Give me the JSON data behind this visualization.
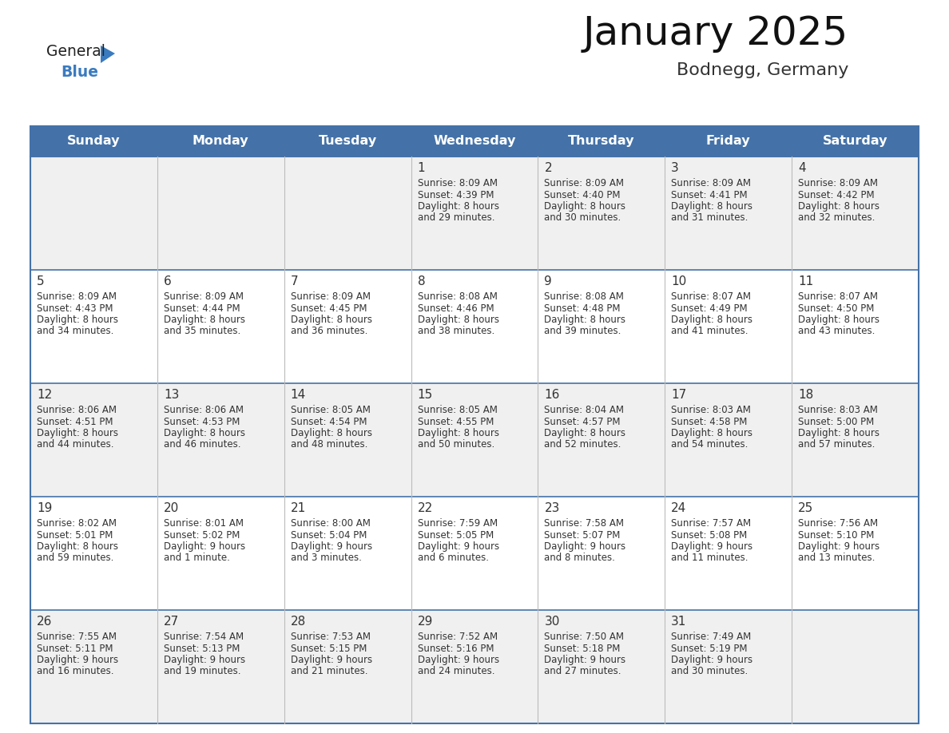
{
  "title": "January 2025",
  "subtitle": "Bodnegg, Germany",
  "days_of_week": [
    "Sunday",
    "Monday",
    "Tuesday",
    "Wednesday",
    "Thursday",
    "Friday",
    "Saturday"
  ],
  "header_bg": "#4472a8",
  "header_text": "#ffffff",
  "cell_bg_odd": "#f0f0f0",
  "cell_bg_even": "#ffffff",
  "cell_text": "#333333",
  "border_color_strong": "#4472a8",
  "border_color_light": "#bbbbbb",
  "title_color": "#111111",
  "subtitle_color": "#333333",
  "logo_general_color": "#222222",
  "logo_blue_color": "#3a7bbf",
  "logo_triangle_color": "#3a7bbf",
  "calendar": [
    [
      null,
      null,
      null,
      {
        "day": 1,
        "sunrise": "8:09 AM",
        "sunset": "4:39 PM",
        "daylight": "8 hours",
        "daylight2": "and 29 minutes."
      },
      {
        "day": 2,
        "sunrise": "8:09 AM",
        "sunset": "4:40 PM",
        "daylight": "8 hours",
        "daylight2": "and 30 minutes."
      },
      {
        "day": 3,
        "sunrise": "8:09 AM",
        "sunset": "4:41 PM",
        "daylight": "8 hours",
        "daylight2": "and 31 minutes."
      },
      {
        "day": 4,
        "sunrise": "8:09 AM",
        "sunset": "4:42 PM",
        "daylight": "8 hours",
        "daylight2": "and 32 minutes."
      }
    ],
    [
      {
        "day": 5,
        "sunrise": "8:09 AM",
        "sunset": "4:43 PM",
        "daylight": "8 hours",
        "daylight2": "and 34 minutes."
      },
      {
        "day": 6,
        "sunrise": "8:09 AM",
        "sunset": "4:44 PM",
        "daylight": "8 hours",
        "daylight2": "and 35 minutes."
      },
      {
        "day": 7,
        "sunrise": "8:09 AM",
        "sunset": "4:45 PM",
        "daylight": "8 hours",
        "daylight2": "and 36 minutes."
      },
      {
        "day": 8,
        "sunrise": "8:08 AM",
        "sunset": "4:46 PM",
        "daylight": "8 hours",
        "daylight2": "and 38 minutes."
      },
      {
        "day": 9,
        "sunrise": "8:08 AM",
        "sunset": "4:48 PM",
        "daylight": "8 hours",
        "daylight2": "and 39 minutes."
      },
      {
        "day": 10,
        "sunrise": "8:07 AM",
        "sunset": "4:49 PM",
        "daylight": "8 hours",
        "daylight2": "and 41 minutes."
      },
      {
        "day": 11,
        "sunrise": "8:07 AM",
        "sunset": "4:50 PM",
        "daylight": "8 hours",
        "daylight2": "and 43 minutes."
      }
    ],
    [
      {
        "day": 12,
        "sunrise": "8:06 AM",
        "sunset": "4:51 PM",
        "daylight": "8 hours",
        "daylight2": "and 44 minutes."
      },
      {
        "day": 13,
        "sunrise": "8:06 AM",
        "sunset": "4:53 PM",
        "daylight": "8 hours",
        "daylight2": "and 46 minutes."
      },
      {
        "day": 14,
        "sunrise": "8:05 AM",
        "sunset": "4:54 PM",
        "daylight": "8 hours",
        "daylight2": "and 48 minutes."
      },
      {
        "day": 15,
        "sunrise": "8:05 AM",
        "sunset": "4:55 PM",
        "daylight": "8 hours",
        "daylight2": "and 50 minutes."
      },
      {
        "day": 16,
        "sunrise": "8:04 AM",
        "sunset": "4:57 PM",
        "daylight": "8 hours",
        "daylight2": "and 52 minutes."
      },
      {
        "day": 17,
        "sunrise": "8:03 AM",
        "sunset": "4:58 PM",
        "daylight": "8 hours",
        "daylight2": "and 54 minutes."
      },
      {
        "day": 18,
        "sunrise": "8:03 AM",
        "sunset": "5:00 PM",
        "daylight": "8 hours",
        "daylight2": "and 57 minutes."
      }
    ],
    [
      {
        "day": 19,
        "sunrise": "8:02 AM",
        "sunset": "5:01 PM",
        "daylight": "8 hours",
        "daylight2": "and 59 minutes."
      },
      {
        "day": 20,
        "sunrise": "8:01 AM",
        "sunset": "5:02 PM",
        "daylight": "9 hours",
        "daylight2": "and 1 minute."
      },
      {
        "day": 21,
        "sunrise": "8:00 AM",
        "sunset": "5:04 PM",
        "daylight": "9 hours",
        "daylight2": "and 3 minutes."
      },
      {
        "day": 22,
        "sunrise": "7:59 AM",
        "sunset": "5:05 PM",
        "daylight": "9 hours",
        "daylight2": "and 6 minutes."
      },
      {
        "day": 23,
        "sunrise": "7:58 AM",
        "sunset": "5:07 PM",
        "daylight": "9 hours",
        "daylight2": "and 8 minutes."
      },
      {
        "day": 24,
        "sunrise": "7:57 AM",
        "sunset": "5:08 PM",
        "daylight": "9 hours",
        "daylight2": "and 11 minutes."
      },
      {
        "day": 25,
        "sunrise": "7:56 AM",
        "sunset": "5:10 PM",
        "daylight": "9 hours",
        "daylight2": "and 13 minutes."
      }
    ],
    [
      {
        "day": 26,
        "sunrise": "7:55 AM",
        "sunset": "5:11 PM",
        "daylight": "9 hours",
        "daylight2": "and 16 minutes."
      },
      {
        "day": 27,
        "sunrise": "7:54 AM",
        "sunset": "5:13 PM",
        "daylight": "9 hours",
        "daylight2": "and 19 minutes."
      },
      {
        "day": 28,
        "sunrise": "7:53 AM",
        "sunset": "5:15 PM",
        "daylight": "9 hours",
        "daylight2": "and 21 minutes."
      },
      {
        "day": 29,
        "sunrise": "7:52 AM",
        "sunset": "5:16 PM",
        "daylight": "9 hours",
        "daylight2": "and 24 minutes."
      },
      {
        "day": 30,
        "sunrise": "7:50 AM",
        "sunset": "5:18 PM",
        "daylight": "9 hours",
        "daylight2": "and 27 minutes."
      },
      {
        "day": 31,
        "sunrise": "7:49 AM",
        "sunset": "5:19 PM",
        "daylight": "9 hours",
        "daylight2": "and 30 minutes."
      },
      null
    ]
  ]
}
